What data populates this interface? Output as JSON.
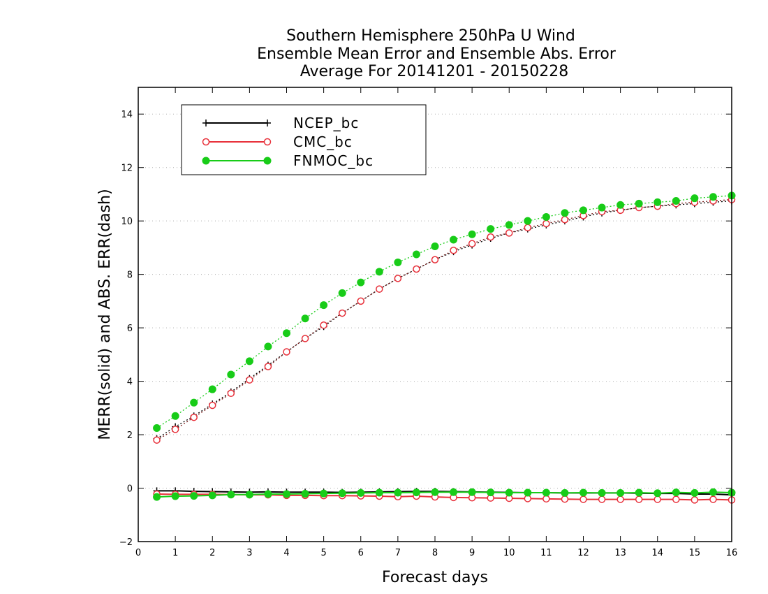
{
  "chart_data": {
    "type": "line",
    "title": [
      "Southern Hemisphere 250hPa U Wind",
      "Ensemble Mean Error and Ensemble Abs. Error",
      "Average For 20141201 - 20150228"
    ],
    "xlabel": "Forecast days",
    "ylabel": "MERR(solid) and ABS. ERR(dash)",
    "xlim": [
      0,
      16
    ],
    "ylim": [
      -2,
      15
    ],
    "xticks": [
      0,
      1,
      2,
      3,
      4,
      5,
      6,
      7,
      8,
      9,
      10,
      11,
      12,
      13,
      14,
      15,
      16
    ],
    "yticks": [
      -2,
      0,
      2,
      4,
      6,
      8,
      10,
      12,
      14
    ],
    "ytick_labels": [
      "−2",
      "0",
      "2",
      "4",
      "6",
      "8",
      "10",
      "12",
      "14"
    ],
    "grid": "horizontal dotted",
    "legend_position": "top-left",
    "x": [
      0.5,
      1.0,
      1.5,
      2.0,
      2.5,
      3.0,
      3.5,
      4.0,
      4.5,
      5.0,
      5.5,
      6.0,
      6.5,
      7.0,
      7.5,
      8.0,
      8.5,
      9.0,
      9.5,
      10.0,
      10.5,
      11.0,
      11.5,
      12.0,
      12.5,
      13.0,
      13.5,
      14.0,
      14.5,
      15.0,
      15.5,
      16.0
    ],
    "series": [
      {
        "name": "NCEP_bc",
        "color": "#000000",
        "marker": "plus",
        "mean_error": [
          -0.1,
          -0.1,
          -0.12,
          -0.13,
          -0.14,
          -0.15,
          -0.14,
          -0.15,
          -0.15,
          -0.15,
          -0.16,
          -0.15,
          -0.14,
          -0.13,
          -0.12,
          -0.12,
          -0.13,
          -0.14,
          -0.15,
          -0.16,
          -0.17,
          -0.17,
          -0.18,
          -0.18,
          -0.18,
          -0.18,
          -0.19,
          -0.2,
          -0.2,
          -0.22,
          -0.22,
          -0.25
        ],
        "abs_error": [
          1.85,
          2.3,
          2.7,
          3.15,
          3.6,
          4.1,
          4.6,
          5.1,
          5.6,
          6.05,
          6.55,
          7.0,
          7.45,
          7.85,
          8.2,
          8.55,
          8.85,
          9.1,
          9.35,
          9.55,
          9.7,
          9.85,
          10.0,
          10.15,
          10.3,
          10.4,
          10.5,
          10.55,
          10.6,
          10.65,
          10.7,
          10.75
        ]
      },
      {
        "name": "CMC_bc",
        "color": "#e8303a",
        "marker": "open-circle",
        "mean_error": [
          -0.22,
          -0.23,
          -0.23,
          -0.23,
          -0.24,
          -0.25,
          -0.25,
          -0.27,
          -0.27,
          -0.28,
          -0.28,
          -0.29,
          -0.3,
          -0.32,
          -0.3,
          -0.33,
          -0.35,
          -0.36,
          -0.37,
          -0.38,
          -0.39,
          -0.4,
          -0.41,
          -0.42,
          -0.42,
          -0.42,
          -0.42,
          -0.42,
          -0.42,
          -0.44,
          -0.42,
          -0.44
        ],
        "abs_error": [
          1.8,
          2.2,
          2.65,
          3.1,
          3.55,
          4.05,
          4.55,
          5.1,
          5.6,
          6.1,
          6.55,
          7.0,
          7.45,
          7.85,
          8.2,
          8.55,
          8.9,
          9.15,
          9.4,
          9.55,
          9.75,
          9.9,
          10.05,
          10.2,
          10.35,
          10.4,
          10.5,
          10.55,
          10.65,
          10.7,
          10.75,
          10.8
        ]
      },
      {
        "name": "FNMOC_bc",
        "color": "#18cc18",
        "marker": "filled-circle",
        "mean_error": [
          -0.33,
          -0.3,
          -0.29,
          -0.27,
          -0.24,
          -0.24,
          -0.22,
          -0.22,
          -0.21,
          -0.2,
          -0.19,
          -0.18,
          -0.17,
          -0.17,
          -0.16,
          -0.15,
          -0.15,
          -0.15,
          -0.16,
          -0.17,
          -0.17,
          -0.17,
          -0.18,
          -0.17,
          -0.18,
          -0.18,
          -0.17,
          -0.19,
          -0.16,
          -0.18,
          -0.15,
          -0.17
        ],
        "abs_error": [
          2.25,
          2.7,
          3.2,
          3.7,
          4.25,
          4.75,
          5.3,
          5.8,
          6.35,
          6.85,
          7.3,
          7.7,
          8.1,
          8.45,
          8.75,
          9.05,
          9.3,
          9.5,
          9.7,
          9.85,
          10.0,
          10.15,
          10.3,
          10.4,
          10.5,
          10.6,
          10.65,
          10.7,
          10.75,
          10.85,
          10.9,
          10.95
        ]
      }
    ]
  }
}
